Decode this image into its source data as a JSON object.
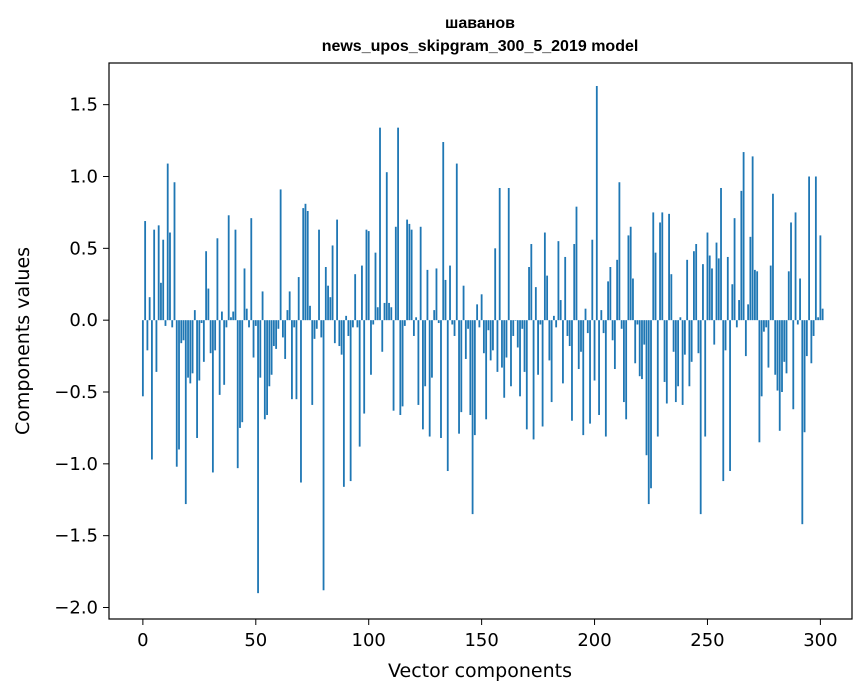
{
  "chart_data": {
    "type": "bar",
    "title_line1": "шаванов",
    "title_line2": "news_upos_skipgram_300_5_2019 model",
    "xlabel": "Vector components",
    "ylabel": "Components values",
    "xlim": [
      -15,
      314
    ],
    "ylim": [
      -2.08,
      1.79
    ],
    "x_ticks": [
      0,
      50,
      100,
      150,
      200,
      250,
      300
    ],
    "x_tick_labels": [
      "0",
      "50",
      "100",
      "150",
      "200",
      "250",
      "300"
    ],
    "y_ticks": [
      -2.0,
      -1.5,
      -1.0,
      -0.5,
      0.0,
      0.5,
      1.0,
      1.5
    ],
    "y_tick_labels": [
      "−2.0",
      "−1.5",
      "−1.0",
      "−0.5",
      "0.0",
      "0.5",
      "1.0",
      "1.5"
    ],
    "bar_color": "#1f77b4",
    "values": [
      -0.53,
      0.69,
      -0.21,
      0.16,
      -0.97,
      0.63,
      -0.36,
      0.66,
      0.26,
      0.56,
      -0.04,
      1.09,
      0.61,
      -0.05,
      0.96,
      -1.02,
      -0.9,
      -0.16,
      -0.14,
      -1.28,
      -0.4,
      -0.44,
      -0.37,
      0.07,
      -0.82,
      -0.42,
      -0.02,
      -0.29,
      0.48,
      0.22,
      -0.23,
      -1.06,
      -0.21,
      0.57,
      -0.52,
      0.06,
      -0.45,
      -0.05,
      0.73,
      0.02,
      0.06,
      0.63,
      -1.03,
      -0.75,
      -0.71,
      0.36,
      0.08,
      -0.05,
      0.71,
      -0.26,
      -0.04,
      -1.9,
      -0.4,
      0.2,
      -0.69,
      -0.66,
      -0.46,
      -0.38,
      -0.18,
      -0.2,
      -0.06,
      0.91,
      -0.12,
      -0.27,
      0.07,
      0.2,
      -0.55,
      -0.05,
      -0.55,
      0.3,
      -1.13,
      0.78,
      0.81,
      0.76,
      0.1,
      -0.59,
      -0.13,
      -0.06,
      0.63,
      -0.12,
      -1.88,
      0.37,
      0.24,
      0.16,
      0.52,
      -0.16,
      0.7,
      -0.18,
      -0.24,
      -1.16,
      0.03,
      -0.11,
      -1.12,
      -0.05,
      0.32,
      -0.05,
      -0.88,
      0.38,
      -0.65,
      0.63,
      0.62,
      -0.38,
      -0.03,
      0.47,
      0.09,
      1.34,
      -0.22,
      0.12,
      1.03,
      0.12,
      0.09,
      -0.63,
      0.65,
      1.34,
      -0.66,
      -0.6,
      -0.04,
      0.7,
      0.67,
      0.63,
      -0.11,
      0.02,
      -0.59,
      0.65,
      -0.76,
      -0.46,
      0.35,
      -0.81,
      -0.4,
      0.07,
      0.36,
      -0.02,
      -0.82,
      1.24,
      0.28,
      -1.05,
      0.38,
      -0.03,
      -0.11,
      1.09,
      -0.79,
      -0.64,
      0.24,
      -0.27,
      -0.06,
      -0.66,
      -1.35,
      -0.8,
      0.11,
      -0.05,
      0.18,
      -0.23,
      -0.69,
      -0.07,
      -0.28,
      -0.21,
      0.5,
      -0.36,
      0.92,
      -0.33,
      -0.54,
      -0.26,
      0.92,
      -0.46,
      -0.11,
      0.0,
      -0.19,
      -0.53,
      -0.06,
      -0.36,
      -0.76,
      0.37,
      0.53,
      -0.83,
      0.23,
      -0.38,
      -0.03,
      -0.74,
      0.61,
      0.31,
      -0.28,
      -0.57,
      0.03,
      -0.05,
      0.55,
      0.14,
      -0.44,
      0.44,
      -0.11,
      -0.18,
      -0.7,
      0.53,
      0.79,
      -0.34,
      -0.22,
      -0.8,
      0.08,
      -0.09,
      -0.72,
      0.56,
      -0.42,
      1.63,
      -0.66,
      0.07,
      -0.09,
      -0.81,
      0.27,
      0.37,
      -0.14,
      -0.34,
      0.42,
      0.96,
      -0.06,
      -0.57,
      -0.69,
      0.59,
      0.65,
      0.29,
      -0.3,
      -0.03,
      -0.39,
      -0.41,
      -0.17,
      -0.94,
      -1.28,
      -1.17,
      0.75,
      0.47,
      -0.81,
      0.68,
      0.75,
      -0.43,
      -0.58,
      0.74,
      0.32,
      -0.22,
      -0.57,
      -0.46,
      0.02,
      -0.59,
      -0.24,
      0.42,
      -0.46,
      -0.29,
      0.48,
      0.53,
      -0.23,
      -1.35,
      0.39,
      -0.81,
      0.61,
      0.45,
      0.36,
      -0.17,
      0.54,
      0.43,
      0.92,
      -1.12,
      -0.21,
      0.44,
      -1.05,
      0.25,
      0.71,
      -0.05,
      0.14,
      0.9,
      1.17,
      -0.25,
      0.11,
      0.58,
      1.14,
      0.35,
      0.34,
      -0.85,
      -0.53,
      -0.08,
      -0.05,
      -0.33,
      0.38,
      0.88,
      -0.38,
      -0.49,
      -0.77,
      -0.5,
      -0.29,
      -0.37,
      0.34,
      0.68,
      -0.62,
      0.75,
      -0.03,
      0.29,
      -1.42,
      -0.78,
      -0.25,
      1.0,
      -0.3,
      -0.11,
      1.0,
      0.02,
      0.59,
      0.08
    ]
  }
}
